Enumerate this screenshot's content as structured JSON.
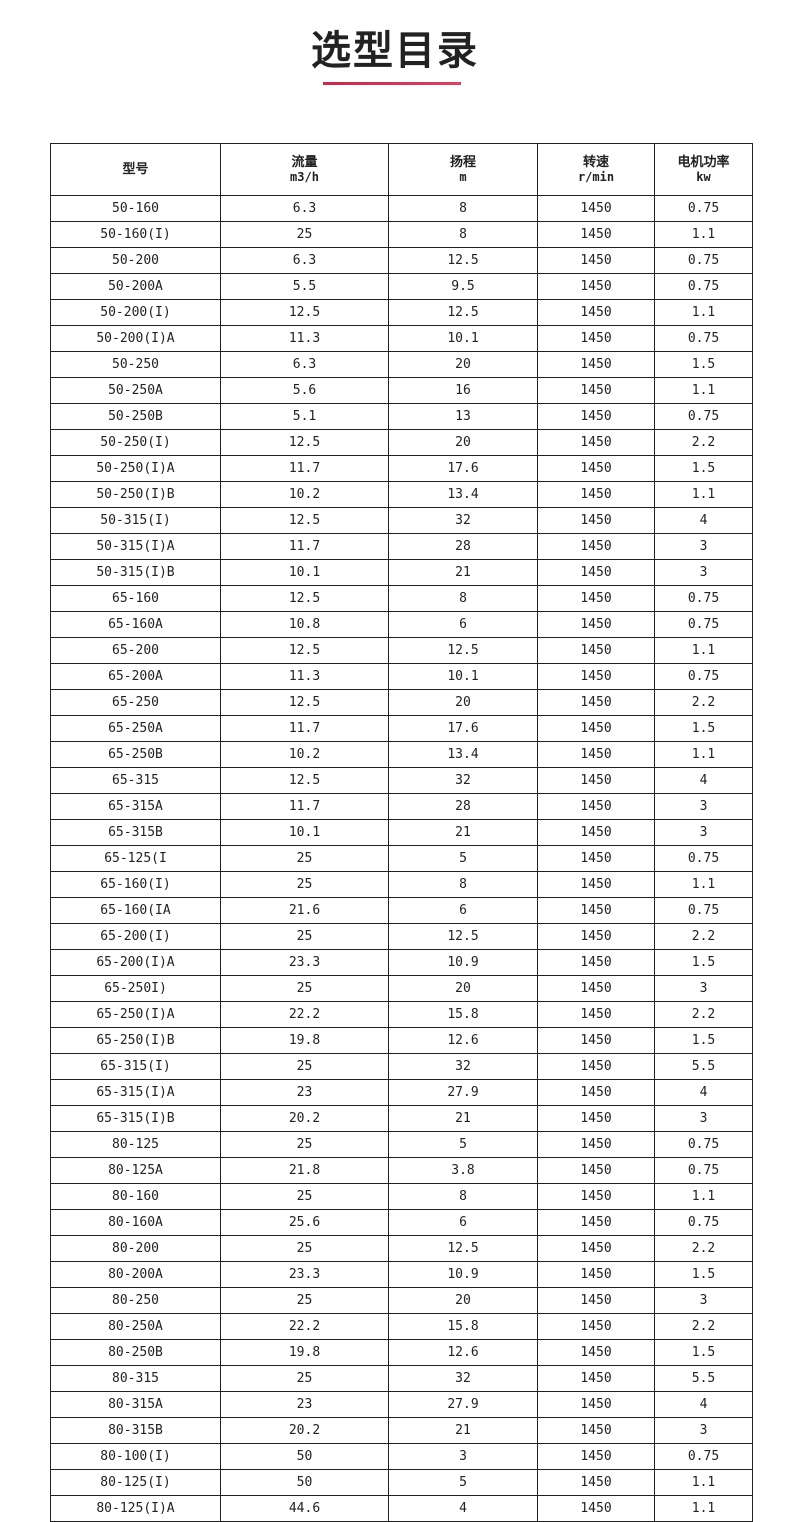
{
  "title": "选型目录",
  "accent_color": "#d7304f",
  "table": {
    "headers": [
      {
        "label": "型号",
        "unit": ""
      },
      {
        "label": "流量",
        "unit": "m3/h"
      },
      {
        "label": "扬程",
        "unit": "m"
      },
      {
        "label": "转速",
        "unit": "r/min"
      },
      {
        "label": "电机功率",
        "unit": "kw"
      }
    ],
    "rows": [
      [
        "50-160",
        "6.3",
        "8",
        "1450",
        "0.75"
      ],
      [
        "50-160(I)",
        "25",
        "8",
        "1450",
        "1.1"
      ],
      [
        "50-200",
        "6.3",
        "12.5",
        "1450",
        "0.75"
      ],
      [
        "50-200A",
        "5.5",
        "9.5",
        "1450",
        "0.75"
      ],
      [
        "50-200(I)",
        "12.5",
        "12.5",
        "1450",
        "1.1"
      ],
      [
        "50-200(I)A",
        "11.3",
        "10.1",
        "1450",
        "0.75"
      ],
      [
        "50-250",
        "6.3",
        "20",
        "1450",
        "1.5"
      ],
      [
        "50-250A",
        "5.6",
        "16",
        "1450",
        "1.1"
      ],
      [
        "50-250B",
        "5.1",
        "13",
        "1450",
        "0.75"
      ],
      [
        "50-250(I)",
        "12.5",
        "20",
        "1450",
        "2.2"
      ],
      [
        "50-250(I)A",
        "11.7",
        "17.6",
        "1450",
        "1.5"
      ],
      [
        "50-250(I)B",
        "10.2",
        "13.4",
        "1450",
        "1.1"
      ],
      [
        "50-315(I)",
        "12.5",
        "32",
        "1450",
        "4"
      ],
      [
        "50-315(I)A",
        "11.7",
        "28",
        "1450",
        "3"
      ],
      [
        "50-315(I)B",
        "10.1",
        "21",
        "1450",
        "3"
      ],
      [
        "65-160",
        "12.5",
        "8",
        "1450",
        "0.75"
      ],
      [
        "65-160A",
        "10.8",
        "6",
        "1450",
        "0.75"
      ],
      [
        "65-200",
        "12.5",
        "12.5",
        "1450",
        "1.1"
      ],
      [
        "65-200A",
        "11.3",
        "10.1",
        "1450",
        "0.75"
      ],
      [
        "65-250",
        "12.5",
        "20",
        "1450",
        "2.2"
      ],
      [
        "65-250A",
        "11.7",
        "17.6",
        "1450",
        "1.5"
      ],
      [
        "65-250B",
        "10.2",
        "13.4",
        "1450",
        "1.1"
      ],
      [
        "65-315",
        "12.5",
        "32",
        "1450",
        "4"
      ],
      [
        "65-315A",
        "11.7",
        "28",
        "1450",
        "3"
      ],
      [
        "65-315B",
        "10.1",
        "21",
        "1450",
        "3"
      ],
      [
        "65-125(I",
        "25",
        "5",
        "1450",
        "0.75"
      ],
      [
        "65-160(I)",
        "25",
        "8",
        "1450",
        "1.1"
      ],
      [
        "65-160(IA",
        "21.6",
        "6",
        "1450",
        "0.75"
      ],
      [
        "65-200(I)",
        "25",
        "12.5",
        "1450",
        "2.2"
      ],
      [
        "65-200(I)A",
        "23.3",
        "10.9",
        "1450",
        "1.5"
      ],
      [
        "65-250I)",
        "25",
        "20",
        "1450",
        "3"
      ],
      [
        "65-250(I)A",
        "22.2",
        "15.8",
        "1450",
        "2.2"
      ],
      [
        "65-250(I)B",
        "19.8",
        "12.6",
        "1450",
        "1.5"
      ],
      [
        "65-315(I)",
        "25",
        "32",
        "1450",
        "5.5"
      ],
      [
        "65-315(I)A",
        "23",
        "27.9",
        "1450",
        "4"
      ],
      [
        "65-315(I)B",
        "20.2",
        "21",
        "1450",
        "3"
      ],
      [
        "80-125",
        "25",
        "5",
        "1450",
        "0.75"
      ],
      [
        "80-125A",
        "21.8",
        "3.8",
        "1450",
        "0.75"
      ],
      [
        "80-160",
        "25",
        "8",
        "1450",
        "1.1"
      ],
      [
        "80-160A",
        "25.6",
        "6",
        "1450",
        "0.75"
      ],
      [
        "80-200",
        "25",
        "12.5",
        "1450",
        "2.2"
      ],
      [
        "80-200A",
        "23.3",
        "10.9",
        "1450",
        "1.5"
      ],
      [
        "80-250",
        "25",
        "20",
        "1450",
        "3"
      ],
      [
        "80-250A",
        "22.2",
        "15.8",
        "1450",
        "2.2"
      ],
      [
        "80-250B",
        "19.8",
        "12.6",
        "1450",
        "1.5"
      ],
      [
        "80-315",
        "25",
        "32",
        "1450",
        "5.5"
      ],
      [
        "80-315A",
        "23",
        "27.9",
        "1450",
        "4"
      ],
      [
        "80-315B",
        "20.2",
        "21",
        "1450",
        "3"
      ],
      [
        "80-100(I)",
        "50",
        "3",
        "1450",
        "0.75"
      ],
      [
        "80-125(I)",
        "50",
        "5",
        "1450",
        "1.1"
      ],
      [
        "80-125(I)A",
        "44.6",
        "4",
        "1450",
        "1.1"
      ]
    ]
  }
}
